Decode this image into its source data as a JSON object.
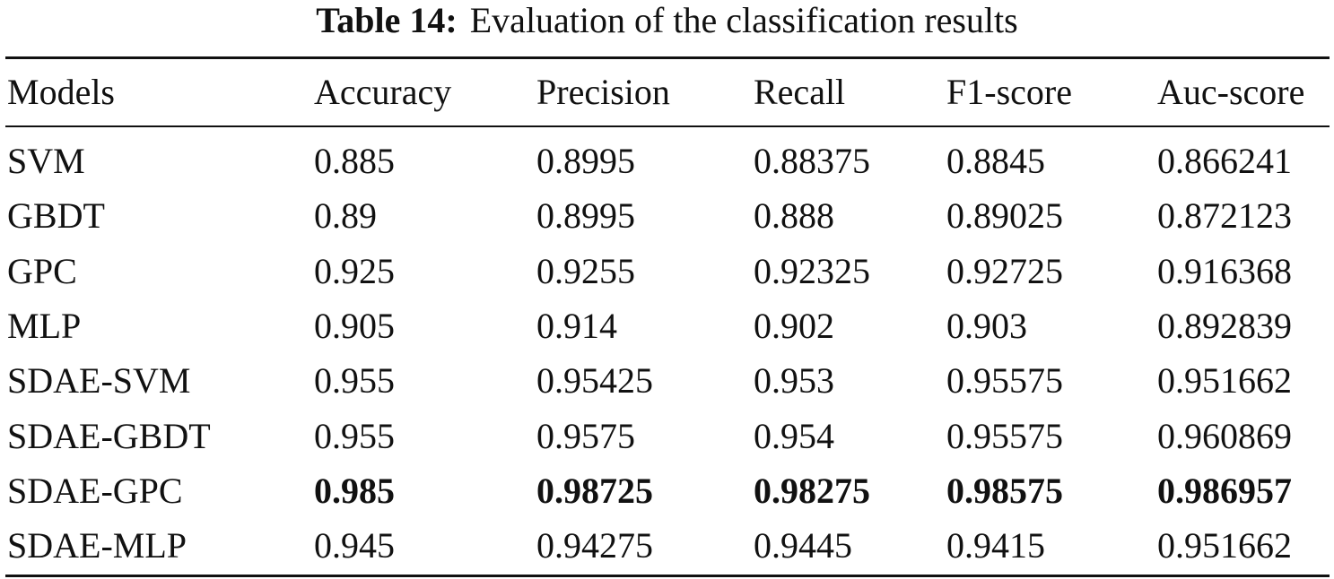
{
  "caption": {
    "label": "Table 14:",
    "text": "Evaluation of the classification results"
  },
  "table": {
    "header": [
      "Models",
      "Accuracy",
      "Precision",
      "Recall",
      "F1-score",
      "Auc-score"
    ],
    "rows": [
      [
        "SVM",
        "0.885",
        "0.8995",
        "0.88375",
        "0.8845",
        "0.866241"
      ],
      [
        "GBDT",
        "0.89",
        "0.8995",
        "0.888",
        "0.89025",
        "0.872123"
      ],
      [
        "GPC",
        "0.925",
        "0.9255",
        "0.92325",
        "0.92725",
        "0.916368"
      ],
      [
        "MLP",
        "0.905",
        "0.914",
        "0.902",
        "0.903",
        "0.892839"
      ],
      [
        "SDAE-SVM",
        "0.955",
        "0.95425",
        "0.953",
        "0.95575",
        "0.951662"
      ],
      [
        "SDAE-GBDT",
        "0.955",
        "0.9575",
        "0.954",
        "0.95575",
        "0.960869"
      ],
      [
        "SDAE-GPC",
        "0.985",
        "0.98725",
        "0.98275",
        "0.98575",
        "0.986957"
      ],
      [
        "SDAE-MLP",
        "0.945",
        "0.94275",
        "0.9445",
        "0.9415",
        "0.951662"
      ]
    ]
  }
}
